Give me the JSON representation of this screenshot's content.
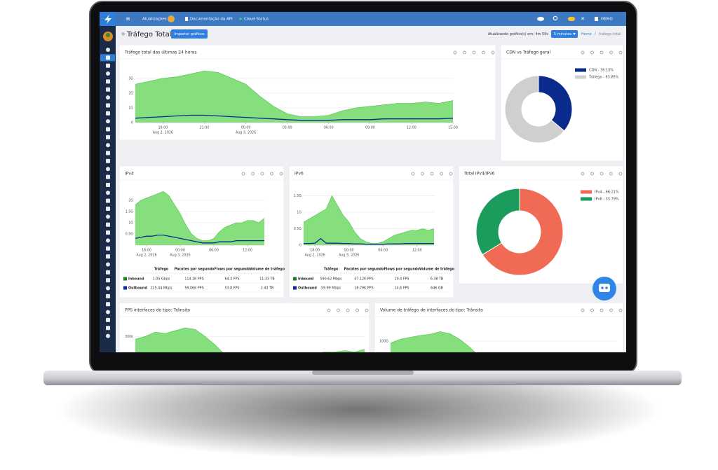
{
  "topbar": {
    "items": [
      "Atualizações",
      "Documentação da API",
      "Cloud Status"
    ],
    "user": "DEMO"
  },
  "header": {
    "title": "Tráfego Total",
    "button": "Importar gráficos",
    "refresh": "Atualizando gráfico(s) em: 4m 50s",
    "interval": "5 minutos",
    "breadcrumb": [
      "Home",
      "trafego-total"
    ]
  },
  "panels": [
    {
      "title": "Tráfego total das últimas 24 horas",
      "chart": {
        "type": "area",
        "x": [
          0,
          1,
          2,
          3,
          4,
          5,
          6,
          7,
          8,
          9,
          10,
          11,
          12,
          13,
          14,
          15,
          16,
          17,
          18,
          19,
          20,
          21,
          22,
          23
        ],
        "xlim": [
          0,
          23
        ],
        "xticks": [
          {
            "value": 2,
            "label": "18:00",
            "date": "Aug 2, 2026"
          },
          {
            "value": 5,
            "label": "21:00"
          },
          {
            "value": 8,
            "label": "00:00",
            "date": "Aug 3, 2026"
          },
          {
            "value": 11,
            "label": "03:00"
          },
          {
            "value": 14,
            "label": "06:00"
          },
          {
            "value": 17,
            "label": "09:00"
          },
          {
            "value": 20,
            "label": "12:00"
          },
          {
            "value": 23,
            "label": "15:00"
          }
        ],
        "ylim": [
          0,
          3.8
        ],
        "yticks": [
          0,
          {
            "value": 1,
            "label": "1G"
          },
          {
            "value": 2,
            "label": "2G"
          },
          {
            "value": 3,
            "label": "3G"
          }
        ],
        "grid": true,
        "series": [
          {
            "style": "area",
            "color": "#7fdd76",
            "values": [
              2.6,
              2.8,
              3.0,
              3.1,
              3.3,
              3.5,
              3.4,
              3.0,
              2.6,
              1.8,
              1.1,
              0.6,
              0.4,
              0.4,
              0.5,
              0.8,
              1.0,
              1.1,
              1.2,
              1.3,
              1.3,
              1.4,
              1.3,
              1.5
            ]
          },
          {
            "style": "line",
            "color": "#0b2a8f",
            "values": [
              0.3,
              0.35,
              0.4,
              0.45,
              0.5,
              0.5,
              0.45,
              0.4,
              0.35,
              0.3,
              0.25,
              0.2,
              0.15,
              0.15,
              0.15,
              0.2,
              0.2,
              0.2,
              0.25,
              0.25,
              0.25,
              0.25,
              0.25,
              0.3
            ]
          }
        ]
      }
    },
    {
      "title": "CDN vs Tráfego geral",
      "chart": {
        "type": "donut",
        "values": [
          36.15,
          63.85
        ],
        "value_labels": [
          "CDN - 36.15%",
          "Tráfego - 63.85%"
        ],
        "colors": [
          "#0a2a8c",
          "#cfcfcf"
        ]
      }
    },
    {
      "title": "IPv4",
      "chart": {
        "type": "area",
        "x": [
          0,
          1,
          2,
          3,
          4,
          5,
          6,
          7,
          8,
          9,
          10,
          11,
          12,
          13,
          14,
          15,
          16,
          17,
          18,
          19,
          20,
          21,
          22,
          23
        ],
        "xlim": [
          0,
          23
        ],
        "xticks": [
          {
            "value": 2,
            "label": "18:00",
            "date": "Aug 2, 2026"
          },
          {
            "value": 8,
            "label": "00:00",
            "date": "Aug 3, 2026"
          },
          {
            "value": 14,
            "label": "06:00"
          },
          {
            "value": 20,
            "label": "12:00"
          }
        ],
        "ylim": [
          0,
          2.5
        ],
        "yticks": [
          {
            "value": 0.5,
            "label": "0.5G"
          },
          {
            "value": 1,
            "label": "1G"
          },
          {
            "value": 1.5,
            "label": "1.5G"
          },
          {
            "value": 2,
            "label": "2G"
          }
        ],
        "grid": true,
        "series": [
          {
            "style": "area",
            "color": "#7fdd76",
            "values": [
              1.8,
              2.0,
              2.1,
              2.2,
              2.3,
              2.4,
              2.2,
              1.8,
              1.4,
              0.9,
              0.5,
              0.3,
              0.2,
              0.2,
              0.3,
              0.6,
              0.8,
              0.9,
              1.0,
              1.0,
              1.1,
              1.1,
              1.0,
              1.2
            ]
          },
          {
            "style": "line",
            "color": "#0b2a8f",
            "values": [
              0.3,
              0.35,
              0.4,
              0.4,
              0.45,
              0.45,
              0.4,
              0.35,
              0.3,
              0.25,
              0.2,
              0.15,
              0.1,
              0.1,
              0.1,
              0.15,
              0.15,
              0.15,
              0.2,
              0.2,
              0.2,
              0.2,
              0.2,
              0.2
            ]
          }
        ]
      },
      "table": {
        "columns": [
          "Tráfego",
          "Pacotes por segundo",
          "Flows por segundo",
          "Volume de tráfego"
        ],
        "rows": [
          [
            "Inbound",
            "1.05 Gbps",
            "114.1K PPS",
            "64.4 FPS",
            "11.33 TB"
          ],
          [
            "Outbound",
            "225.44 Mbps",
            "59.06K PPS",
            "53.8 FPS",
            "2.43 TB"
          ]
        ],
        "row_colors": [
          "#1e7d1e",
          "#0b2aa8"
        ]
      }
    },
    {
      "title": "IPv6",
      "chart": {
        "type": "area",
        "x": [
          0,
          1,
          2,
          3,
          4,
          5,
          6,
          7,
          8,
          9,
          10,
          11,
          12,
          13,
          14,
          15,
          16,
          17,
          18,
          19,
          20,
          21,
          22,
          23
        ],
        "xlim": [
          0,
          23
        ],
        "xticks": [
          {
            "value": 2,
            "label": "18:00",
            "date": "Aug 2, 2026"
          },
          {
            "value": 8,
            "label": "00:00",
            "date": "Aug 3, 2026"
          },
          {
            "value": 14,
            "label": "06:00"
          },
          {
            "value": 20,
            "label": "12:00"
          }
        ],
        "ylim": [
          0,
          1.7
        ],
        "yticks": [
          0,
          {
            "value": 0.5,
            "label": "0.5G"
          },
          {
            "value": 1,
            "label": "1G"
          },
          {
            "value": 1.5,
            "label": "1.5G"
          }
        ],
        "grid": true,
        "series": [
          {
            "style": "area",
            "color": "#7fdd76",
            "values": [
              0.7,
              0.8,
              0.9,
              1.0,
              1.1,
              1.5,
              1.2,
              0.9,
              0.7,
              0.4,
              0.2,
              0.1,
              0.05,
              0.05,
              0.1,
              0.2,
              0.3,
              0.35,
              0.4,
              0.45,
              0.45,
              0.5,
              0.45,
              0.5
            ]
          },
          {
            "style": "line",
            "color": "#0b2a8f",
            "values": [
              0.05,
              0.05,
              0.06,
              0.2,
              0.06,
              0.06,
              0.06,
              0.05,
              0.05,
              0.04,
              0.04,
              0.03,
              0.03,
              0.03,
              0.03,
              0.04,
              0.04,
              0.04,
              0.05,
              0.05,
              0.05,
              0.05,
              0.05,
              0.05
            ]
          }
        ]
      },
      "table": {
        "columns": [
          "Tráfego",
          "Pacotes por segundo",
          "Flows por segundo",
          "Volume de tráfego"
        ],
        "rows": [
          [
            "Inbound",
            "590.62 Mbps",
            "57.12K PPS",
            "19.4 FPS",
            "6.38 TB"
          ],
          [
            "Outbound",
            "59.99 Mbps",
            "18.79K PPS",
            "14.6 FPS",
            "646 GB"
          ]
        ],
        "row_colors": [
          "#1e7d1e",
          "#0b2aa8"
        ]
      }
    },
    {
      "title": "Total IPv4/IPv6",
      "chart": {
        "type": "donut",
        "values": [
          66.21,
          33.79
        ],
        "value_labels": [
          "IPv4 - 66.21%",
          "IPv6 - 33.79%"
        ],
        "colors": [
          "#f06a55",
          "#1b9c5c"
        ]
      }
    },
    {
      "title": "PPS interfaces do tipo: Trânsito",
      "chart": {
        "type": "area",
        "x": [
          0,
          1,
          2,
          3,
          4,
          5,
          6,
          7,
          8,
          9,
          10,
          11,
          12,
          13,
          14,
          15,
          16,
          17,
          18,
          19,
          20,
          21,
          22,
          23
        ],
        "xlim": [
          0,
          23
        ],
        "xticks": [],
        "ylim": [
          0,
          400000
        ],
        "yticks": [
          {
            "value": 300000,
            "label": "300k"
          }
        ],
        "grid": true,
        "series": [
          {
            "style": "area",
            "color": "#7fdd76",
            "values": [
              280000,
              300000,
              330000,
              320000,
              340000,
              360000,
              350000,
              300000,
              240000,
              170000,
              110000,
              80000,
              60000,
              60000,
              80000,
              120000,
              150000,
              170000,
              180000,
              190000,
              190000,
              200000,
              190000,
              210000
            ]
          }
        ]
      }
    },
    {
      "title": "Volume de tráfego de interfaces do tipo: Trânsito",
      "chart": {
        "type": "area",
        "x": [
          0,
          1,
          2,
          3,
          4,
          5,
          6,
          7,
          8,
          9,
          10,
          11,
          12,
          13,
          14,
          15,
          16,
          17,
          18,
          19,
          20,
          21,
          22,
          23
        ],
        "xlim": [
          0,
          23
        ],
        "xticks": [],
        "ylim": [
          0,
          150
        ],
        "yticks": [
          {
            "value": 100,
            "label": "100G"
          }
        ],
        "grid": true,
        "series": [
          {
            "style": "area",
            "color": "#7fdd76",
            "values": [
              95,
              105,
              110,
              115,
              118,
              125,
              120,
              105,
              85,
              60,
              40,
              25,
              20,
              20,
              25,
              40,
              50,
              55,
              60,
              62,
              63,
              65,
              62,
              68
            ]
          }
        ]
      }
    }
  ]
}
